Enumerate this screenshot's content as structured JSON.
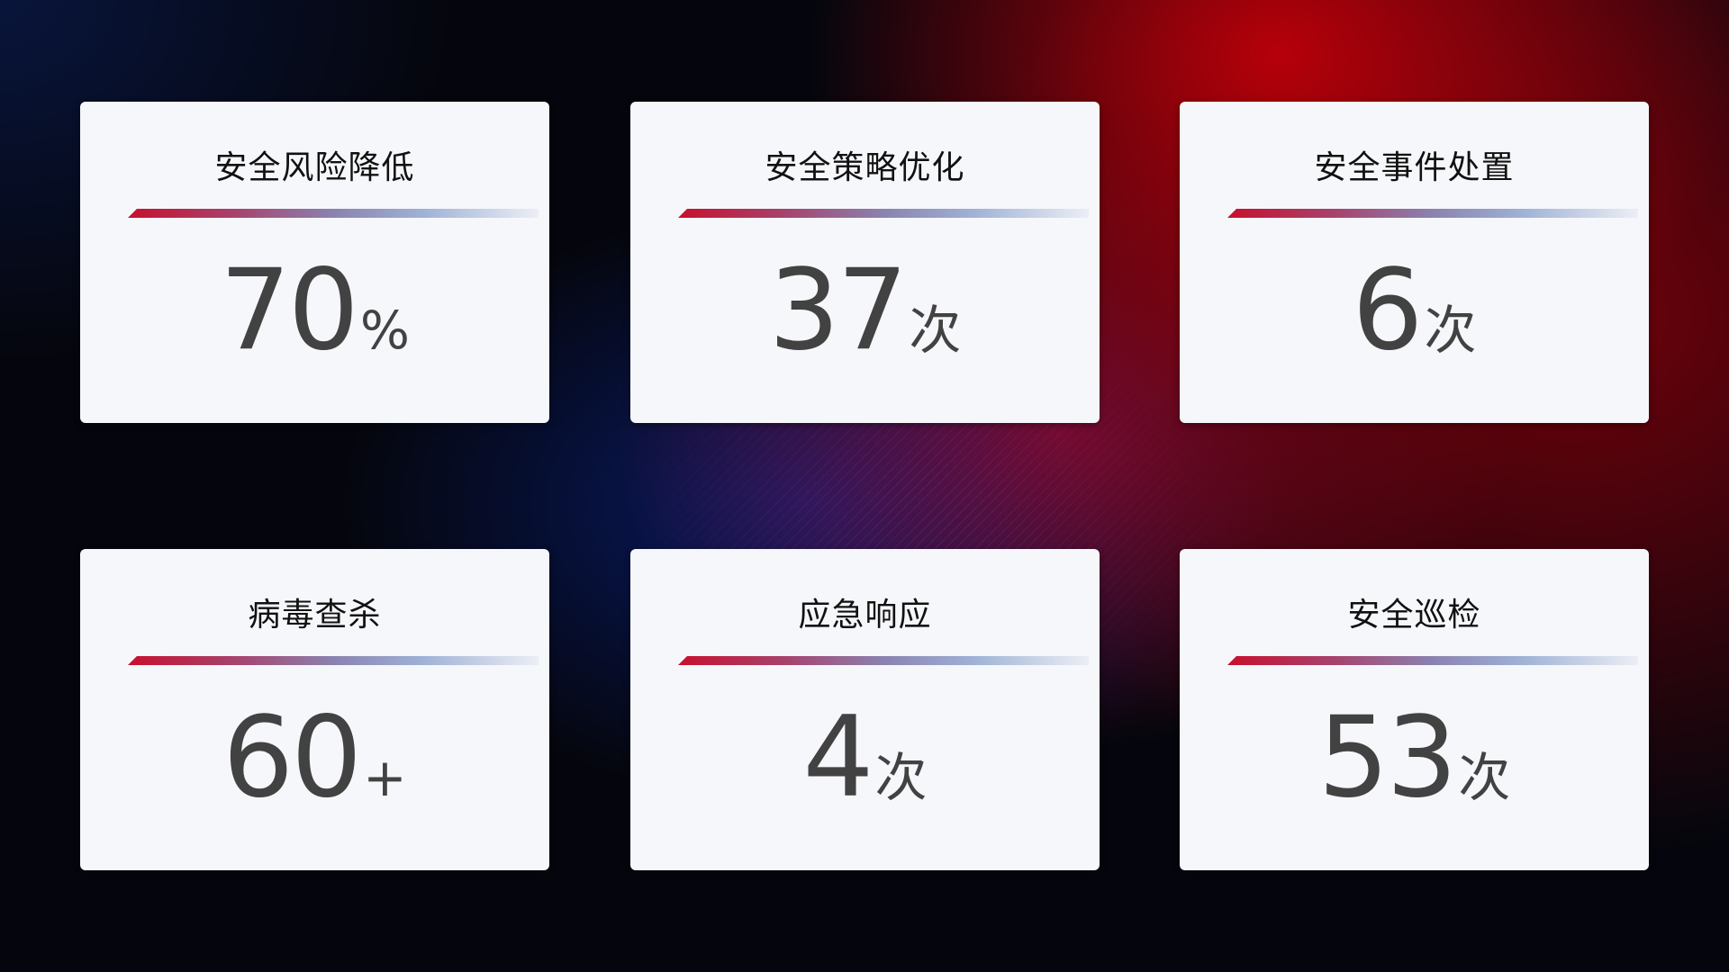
{
  "colors": {
    "accent_red": "#c8102e",
    "accent_blue": "#8a9fd0",
    "card_bg": "#f6f7fb",
    "value_text": "#424242"
  },
  "cards": [
    {
      "title": "安全风险降低",
      "value": "70",
      "unit": "%"
    },
    {
      "title": "安全策略优化",
      "value": "37",
      "unit": "次"
    },
    {
      "title": "安全事件处置",
      "value": "6",
      "unit": "次"
    },
    {
      "title": "病毒查杀",
      "value": "60",
      "unit": "+"
    },
    {
      "title": "应急响应",
      "value": "4",
      "unit": "次"
    },
    {
      "title": "安全巡检",
      "value": "53",
      "unit": "次"
    }
  ]
}
